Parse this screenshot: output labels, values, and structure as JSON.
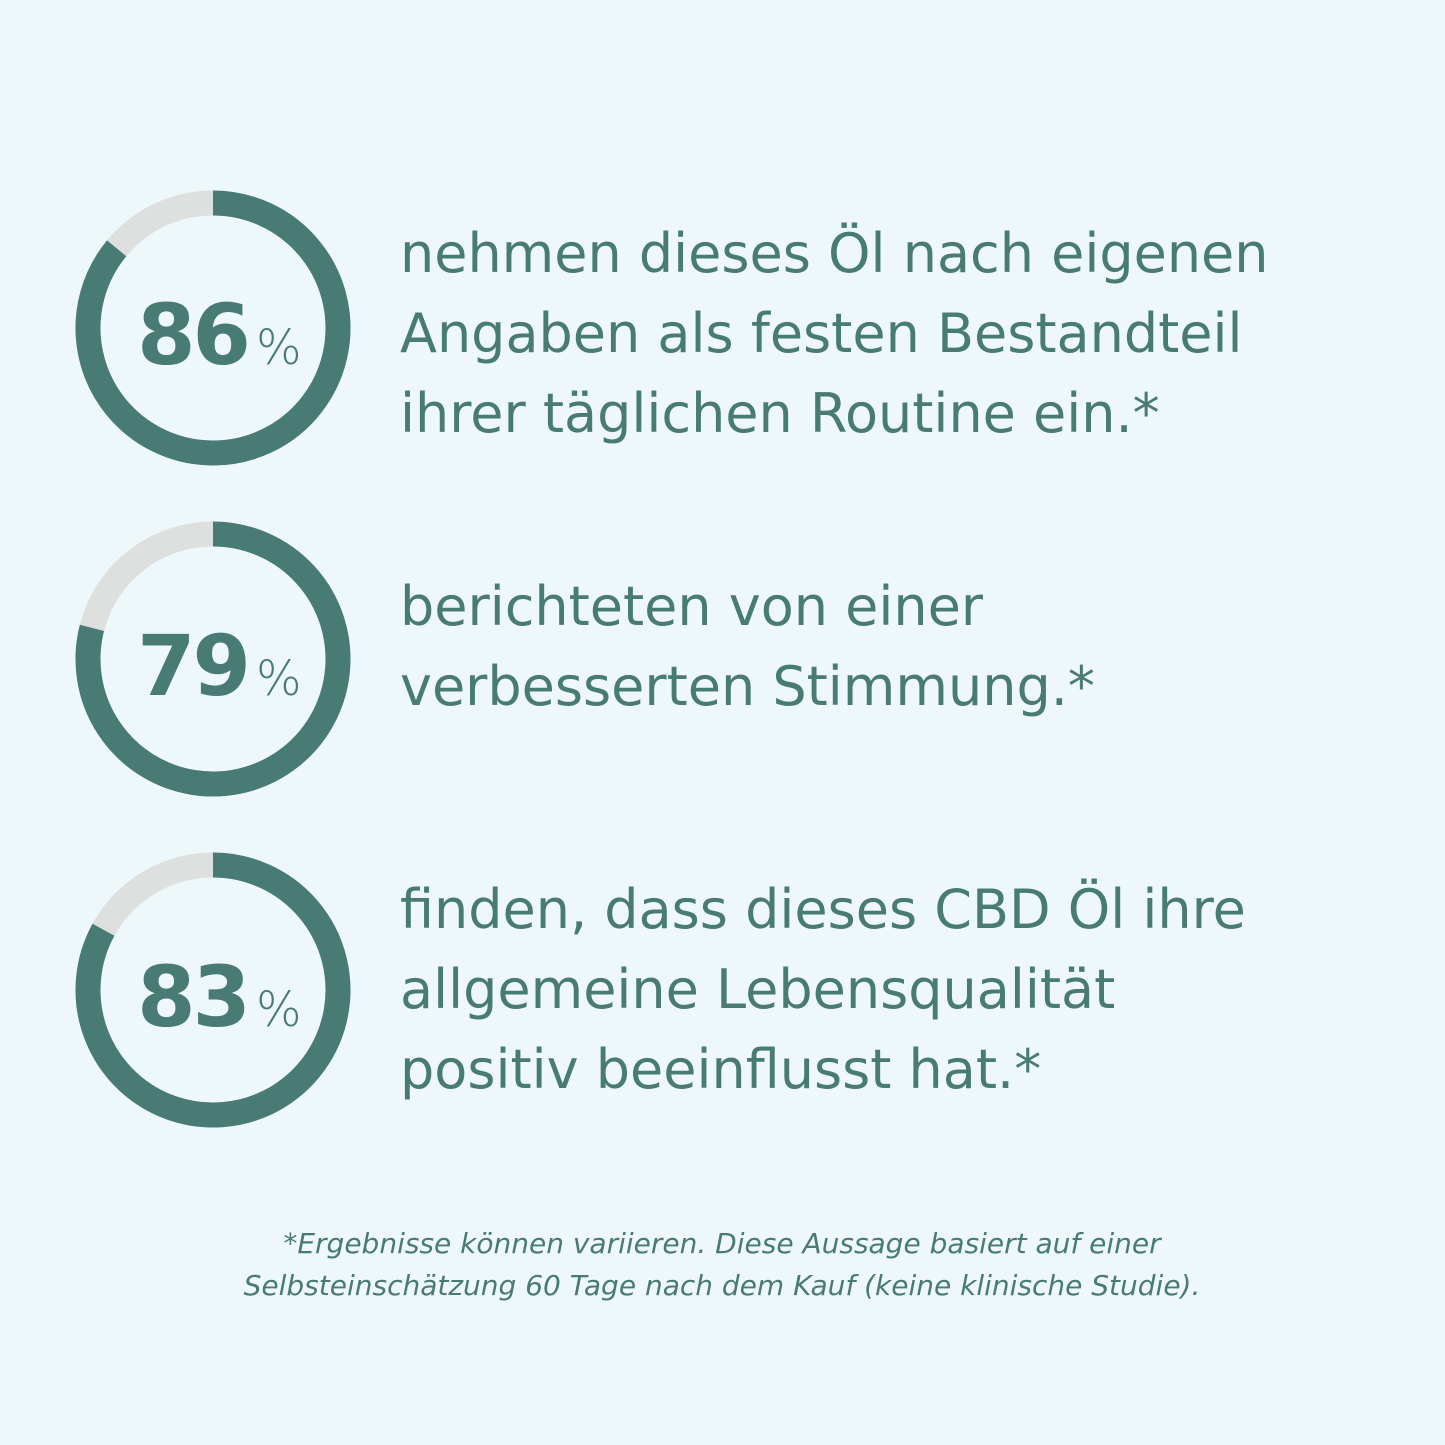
{
  "stats": [
    {
      "value": 86,
      "unit": "%",
      "lines": [
        "nehmen dieses Öl nach eigenen",
        "Angaben als festen Bestandteil",
        "ihrer täglichen Routine ein.*"
      ]
    },
    {
      "value": 79,
      "unit": "%",
      "lines": [
        "berichteten von einer",
        "verbesserten Stimmung.*"
      ]
    },
    {
      "value": 83,
      "unit": "%",
      "lines": [
        "finden, dass dieses CBD Öl ihre",
        "allgemeine Lebensqualität",
        "positiv beeinflusst hat.*"
      ]
    }
  ],
  "footnote": [
    "*Ergebnisse können variieren. Diese Aussage basiert auf einer",
    "Selbsteinschätzung 60 Tage nach dem Kauf (keine klinische Studie)."
  ]
}
